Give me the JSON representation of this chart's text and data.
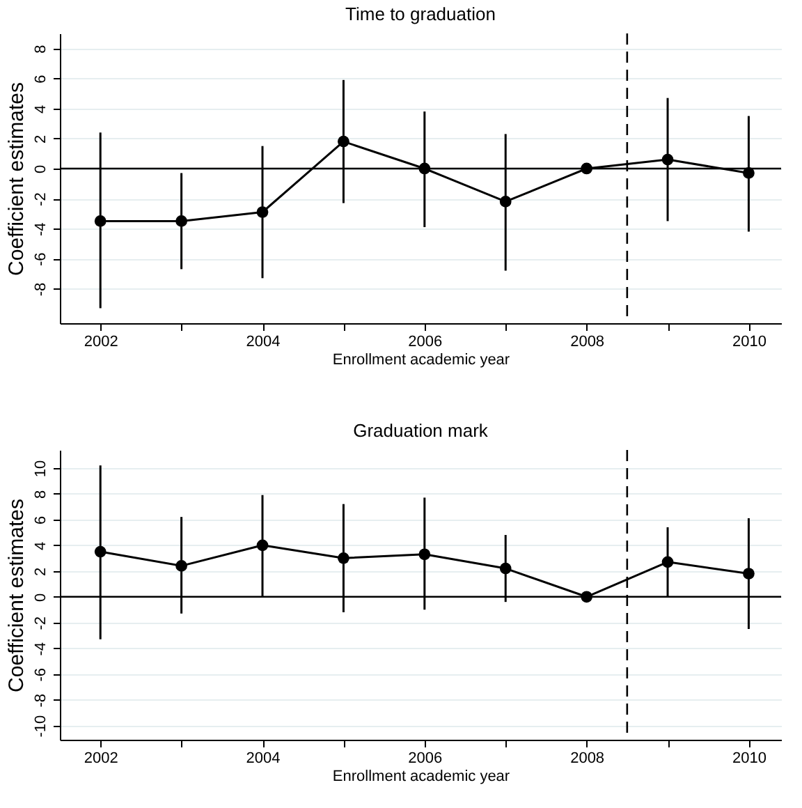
{
  "chart_data": [
    {
      "type": "line",
      "title": "Time to graduation",
      "xlabel": "Enrollment academic year",
      "ylabel": "Coefficient estimates",
      "x": [
        2002,
        2003,
        2004,
        2005,
        2006,
        2007,
        2008,
        2009,
        2010
      ],
      "series": [
        {
          "color": "#000000",
          "values": [
            -3.5,
            -3.5,
            -2.9,
            1.8,
            0,
            -2.2,
            0,
            0.6,
            -0.3
          ],
          "errors": [
            [
              -9.3,
              2.4
            ],
            [
              -6.7,
              -0.3
            ],
            [
              -7.3,
              1.5
            ],
            [
              -2.3,
              5.9
            ],
            [
              -3.9,
              3.8
            ],
            [
              -6.8,
              2.3
            ],
            null,
            [
              -3.5,
              4.7
            ],
            [
              -4.2,
              3.5
            ]
          ]
        }
      ],
      "xlim": [
        2001.5,
        2010.4
      ],
      "ylim": [
        -10.3,
        9
      ],
      "xticks": [
        2002,
        {
          "value": 2003,
          "label": null
        },
        2004,
        {
          "value": 2005,
          "label": null
        },
        2006,
        {
          "value": 2007,
          "label": null
        },
        2008,
        {
          "value": 2009,
          "label": null
        },
        2010
      ],
      "yticks": [
        -8,
        -6,
        -4,
        -2,
        0,
        2,
        4,
        6,
        8
      ],
      "ref_lines": [
        {
          "axis": "x",
          "value": 2008.5,
          "line_style": "dashed",
          "color": "#000000"
        },
        {
          "axis": "y",
          "value": 0,
          "line_style": "solid",
          "color": "#000000"
        }
      ],
      "grid": "y",
      "marker": "circle",
      "line_style": "solid",
      "legend": false
    },
    {
      "type": "line",
      "title": "Graduation mark",
      "xlabel": "Enrollment academic year",
      "ylabel": "Coefficient estimates",
      "x": [
        2002,
        2003,
        2004,
        2005,
        2006,
        2007,
        2008,
        2009,
        2010
      ],
      "series": [
        {
          "color": "#000000",
          "values": [
            3.5,
            2.4,
            4.0,
            3.0,
            3.3,
            2.2,
            0,
            2.7,
            1.8
          ],
          "errors": [
            [
              -3.3,
              10.2
            ],
            [
              -1.3,
              6.2
            ],
            [
              0,
              7.9
            ],
            [
              -1.2,
              7.2
            ],
            [
              -1.0,
              7.7
            ],
            [
              -0.4,
              4.8
            ],
            null,
            [
              0,
              5.4
            ],
            [
              -2.5,
              6.1
            ]
          ]
        }
      ],
      "xlim": [
        2001.5,
        2010.4
      ],
      "ylim": [
        -11.1,
        11.4
      ],
      "xticks": [
        2002,
        {
          "value": 2003,
          "label": null
        },
        2004,
        {
          "value": 2005,
          "label": null
        },
        2006,
        {
          "value": 2007,
          "label": null
        },
        2008,
        {
          "value": 2009,
          "label": null
        },
        2010
      ],
      "yticks": [
        -10,
        -8,
        -6,
        -4,
        -2,
        0,
        2,
        4,
        6,
        8,
        10
      ],
      "ref_lines": [
        {
          "axis": "x",
          "value": 2008.5,
          "line_style": "dashed",
          "color": "#000000"
        },
        {
          "axis": "y",
          "value": 0,
          "line_style": "solid",
          "color": "#000000"
        }
      ],
      "grid": "y",
      "marker": "circle",
      "line_style": "solid",
      "legend": false
    }
  ]
}
